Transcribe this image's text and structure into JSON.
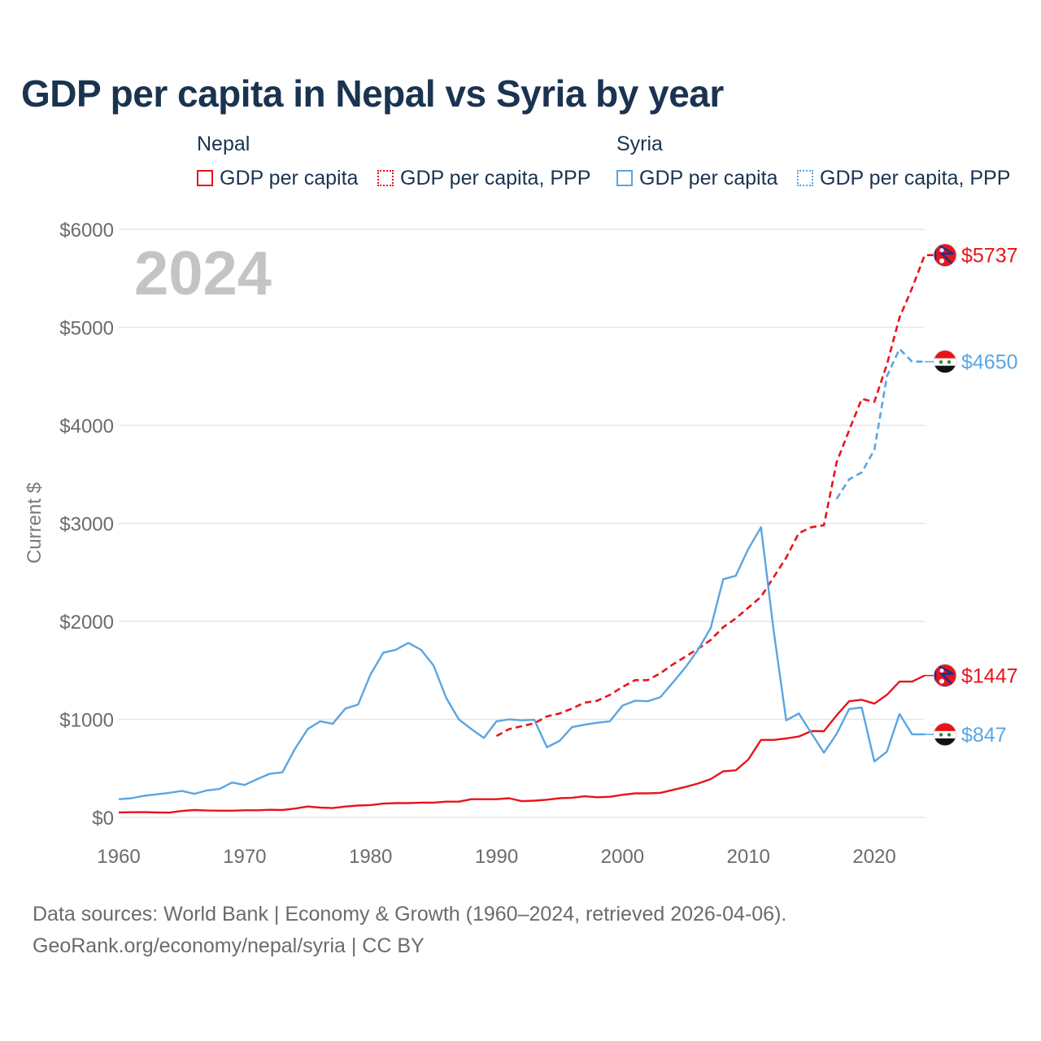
{
  "chart_data": {
    "type": "line",
    "title": "GDP per capita in Nepal vs Syria by year",
    "current_year": "2024",
    "ylabel": "Current $",
    "xlabel": "",
    "xlim": [
      1960,
      2024
    ],
    "ylim": [
      0,
      6000
    ],
    "x_ticks": [
      1960,
      1970,
      1980,
      1990,
      2000,
      2010,
      2020
    ],
    "y_ticks": [
      0,
      1000,
      2000,
      3000,
      4000,
      5000,
      6000
    ],
    "y_tick_labels": [
      "$0",
      "$1000",
      "$2000",
      "$3000",
      "$4000",
      "$5000",
      "$6000"
    ],
    "grid": true,
    "legend": {
      "groups": [
        {
          "name": "Nepal",
          "items": [
            "GDP per capita",
            "GDP per capita, PPP"
          ]
        },
        {
          "name": "Syria",
          "items": [
            "GDP per capita",
            "GDP per capita, PPP"
          ]
        }
      ],
      "placement": "top"
    },
    "colors": {
      "nepal": "#e8141a",
      "syria": "#5ba5e2"
    },
    "series": [
      {
        "name": "Nepal GDP per capita",
        "country": "nepal",
        "style": "solid",
        "end_label": "$1447",
        "start_year": 1960,
        "values": [
          50,
          52,
          53,
          50,
          48,
          65,
          75,
          70,
          68,
          68,
          72,
          72,
          77,
          75,
          90,
          110,
          100,
          95,
          110,
          120,
          125,
          140,
          145,
          145,
          150,
          150,
          160,
          160,
          185,
          185,
          185,
          195,
          165,
          170,
          180,
          195,
          200,
          215,
          205,
          210,
          230,
          245,
          245,
          250,
          280,
          310,
          345,
          390,
          470,
          480,
          590,
          790,
          790,
          805,
          825,
          880,
          880,
          1040,
          1185,
          1200,
          1160,
          1250,
          1385,
          1385,
          1447
        ]
      },
      {
        "name": "Nepal GDP per capita, PPP",
        "country": "nepal",
        "style": "dashed",
        "end_label": "$5737",
        "start_year": 1990,
        "values": [
          830,
          900,
          930,
          960,
          1030,
          1060,
          1110,
          1170,
          1190,
          1250,
          1330,
          1400,
          1400,
          1470,
          1560,
          1640,
          1720,
          1810,
          1940,
          2030,
          2140,
          2250,
          2450,
          2650,
          2900,
          2960,
          2980,
          3620,
          3950,
          4270,
          4240,
          4620,
          5100,
          5400,
          5737,
          5737
        ]
      },
      {
        "name": "Syria GDP per capita",
        "country": "syria",
        "style": "solid",
        "end_label": "$847",
        "start_year": 1960,
        "values": [
          185,
          195,
          220,
          235,
          250,
          270,
          240,
          275,
          290,
          355,
          330,
          390,
          445,
          460,
          700,
          900,
          980,
          955,
          1110,
          1150,
          1460,
          1680,
          1710,
          1780,
          1710,
          1550,
          1220,
          1000,
          900,
          810,
          980,
          1000,
          990,
          995,
          715,
          780,
          920,
          945,
          965,
          980,
          1140,
          1190,
          1185,
          1225,
          1375,
          1530,
          1710,
          1930,
          2430,
          2465,
          2740,
          2960,
          1910,
          990,
          1060,
          860,
          660,
          850,
          1105,
          1120,
          570,
          670,
          1055,
          847,
          847
        ]
      },
      {
        "name": "Syria GDP per capita, PPP",
        "country": "syria",
        "style": "dashed",
        "end_label": "$4650",
        "start_year": 2017,
        "values": [
          3250,
          3450,
          3520,
          3750,
          4500,
          4780,
          4650,
          4650
        ]
      }
    ],
    "source": {
      "line1": "Data sources: World Bank | Economy & Growth (1960–2024, retrieved 2026-04-06).",
      "line2": "GeoRank.org/economy/nepal/syria | CC BY"
    },
    "flags": {
      "nepal": "nepal-flag-icon",
      "syria": "syria-flag-icon"
    }
  }
}
